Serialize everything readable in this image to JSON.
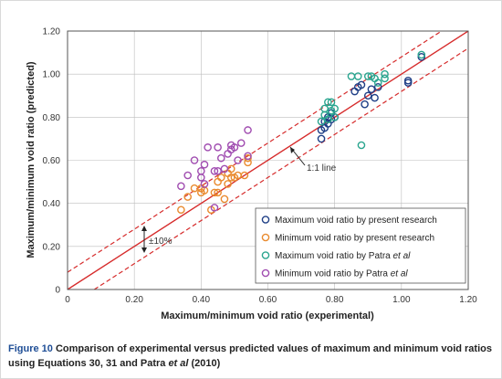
{
  "chart_data": {
    "type": "scatter",
    "xlabel": "Maximum/minimum void ratio (experimental)",
    "ylabel": "Maximum/minimum void ratio (predicted)",
    "xlim": [
      0,
      1.2
    ],
    "ylim": [
      0,
      1.2
    ],
    "xticks": [
      "0",
      "0.20",
      "0.40",
      "0.60",
      "0.80",
      "1.00",
      "1.20"
    ],
    "yticks": [
      "0",
      "0.20",
      "0.40",
      "0.60",
      "0.80",
      "1.00",
      "1.20"
    ],
    "grid": true,
    "legend_position": "bottom-right",
    "lines": {
      "one_to_one_label": "1:1 line",
      "band_label": "±10%",
      "colors": {
        "solid": "#d62b2b",
        "dashed": "#d62b2b"
      }
    },
    "series": [
      {
        "name": "Maximum void ratio by present research",
        "color": "#1f3f86",
        "points": [
          [
            0.76,
            0.7
          ],
          [
            0.76,
            0.74
          ],
          [
            0.77,
            0.75
          ],
          [
            0.77,
            0.78
          ],
          [
            0.78,
            0.77
          ],
          [
            0.78,
            0.8
          ],
          [
            0.79,
            0.79
          ],
          [
            0.79,
            0.82
          ],
          [
            0.8,
            0.8
          ],
          [
            0.86,
            0.92
          ],
          [
            0.87,
            0.94
          ],
          [
            0.88,
            0.95
          ],
          [
            0.89,
            0.86
          ],
          [
            0.9,
            0.9
          ],
          [
            0.91,
            0.93
          ],
          [
            0.92,
            0.89
          ],
          [
            0.93,
            0.94
          ],
          [
            1.02,
            0.96
          ],
          [
            1.02,
            0.97
          ],
          [
            1.06,
            1.08
          ]
        ]
      },
      {
        "name": "Minimum void ratio by present research",
        "color": "#e98a2e",
        "points": [
          [
            0.34,
            0.37
          ],
          [
            0.36,
            0.43
          ],
          [
            0.38,
            0.47
          ],
          [
            0.4,
            0.45
          ],
          [
            0.4,
            0.47
          ],
          [
            0.41,
            0.46
          ],
          [
            0.43,
            0.37
          ],
          [
            0.44,
            0.45
          ],
          [
            0.45,
            0.45
          ],
          [
            0.45,
            0.5
          ],
          [
            0.46,
            0.52
          ],
          [
            0.47,
            0.42
          ],
          [
            0.48,
            0.49
          ],
          [
            0.48,
            0.54
          ],
          [
            0.49,
            0.52
          ],
          [
            0.49,
            0.56
          ],
          [
            0.5,
            0.52
          ],
          [
            0.51,
            0.53
          ],
          [
            0.53,
            0.53
          ],
          [
            0.54,
            0.59
          ],
          [
            0.54,
            0.61
          ]
        ]
      },
      {
        "name": "Maximum void ratio by Patra et al",
        "name_plain": "Maximum void ratio by Patra ",
        "name_italic": "et al",
        "color": "#2aa58f",
        "points": [
          [
            0.76,
            0.78
          ],
          [
            0.77,
            0.81
          ],
          [
            0.77,
            0.84
          ],
          [
            0.78,
            0.79
          ],
          [
            0.78,
            0.87
          ],
          [
            0.79,
            0.83
          ],
          [
            0.79,
            0.87
          ],
          [
            0.8,
            0.8
          ],
          [
            0.8,
            0.84
          ],
          [
            0.85,
            0.99
          ],
          [
            0.87,
            0.99
          ],
          [
            0.88,
            0.67
          ],
          [
            0.9,
            0.99
          ],
          [
            0.91,
            0.99
          ],
          [
            0.92,
            0.98
          ],
          [
            0.93,
            0.96
          ],
          [
            0.95,
            0.98
          ],
          [
            0.95,
            1.0
          ],
          [
            1.06,
            1.09
          ]
        ]
      },
      {
        "name": "Minimum void ratio by Patra et al",
        "name_plain": "Minimum void ratio by Patra ",
        "name_italic": "et al",
        "color": "#a04cb0",
        "points": [
          [
            0.34,
            0.48
          ],
          [
            0.36,
            0.53
          ],
          [
            0.38,
            0.6
          ],
          [
            0.4,
            0.52
          ],
          [
            0.4,
            0.55
          ],
          [
            0.41,
            0.49
          ],
          [
            0.41,
            0.58
          ],
          [
            0.42,
            0.66
          ],
          [
            0.44,
            0.38
          ],
          [
            0.44,
            0.55
          ],
          [
            0.45,
            0.55
          ],
          [
            0.45,
            0.66
          ],
          [
            0.46,
            0.61
          ],
          [
            0.47,
            0.56
          ],
          [
            0.48,
            0.63
          ],
          [
            0.49,
            0.65
          ],
          [
            0.49,
            0.67
          ],
          [
            0.5,
            0.66
          ],
          [
            0.51,
            0.6
          ],
          [
            0.52,
            0.68
          ],
          [
            0.54,
            0.62
          ],
          [
            0.54,
            0.74
          ]
        ]
      }
    ]
  },
  "caption": {
    "figure": "Figure 10",
    "text_a": " Comparison of experimental versus predicted values of maximum and minimum void ratios using Equations 30, 31 and Patra ",
    "text_italic": "et al",
    "text_b": " (2010)"
  }
}
